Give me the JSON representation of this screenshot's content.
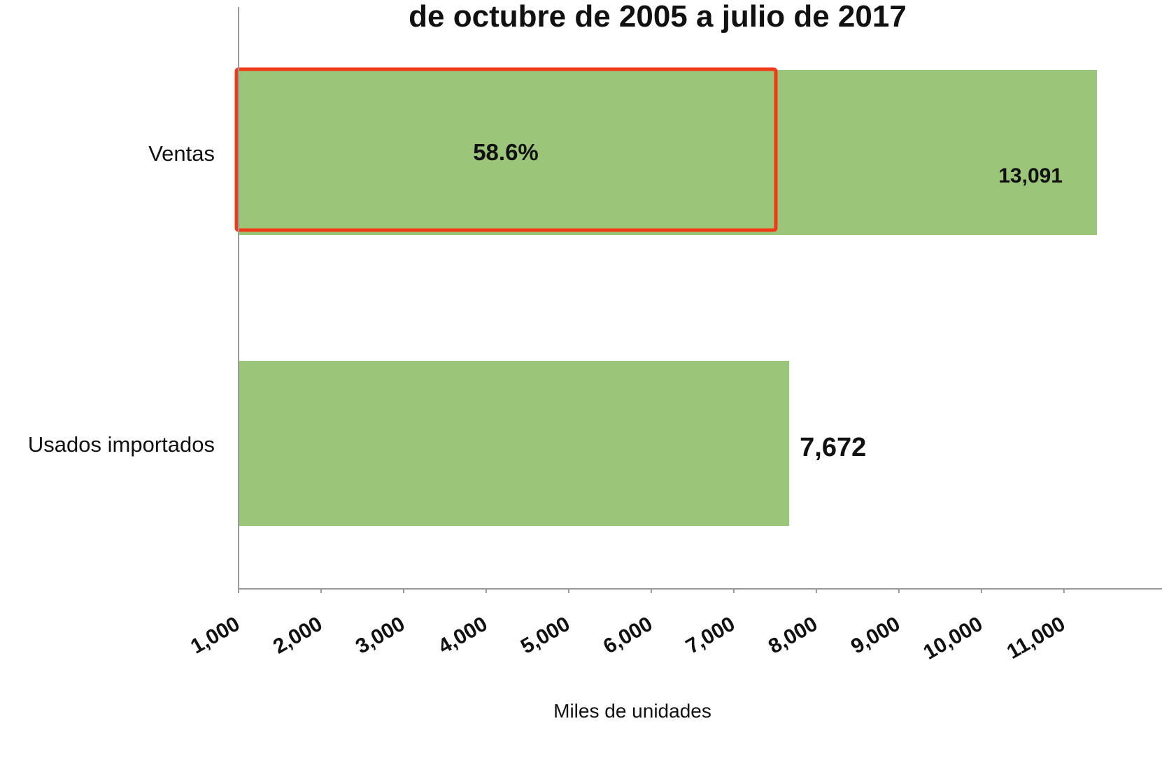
{
  "chart_data": {
    "type": "barh",
    "title": "de octubre de 2005 a julio de 2017",
    "categories": [
      "Ventas",
      "Usados importados"
    ],
    "values": [
      13091,
      7672
    ],
    "value_labels": [
      "13,091",
      "7,672"
    ],
    "color": "#9bc579",
    "xlabel": "Miles de unidades",
    "xlim": [
      1000,
      11400
    ],
    "xticks": [
      {
        "value": 1000,
        "label": "1,000"
      },
      {
        "value": 2000,
        "label": "2,000"
      },
      {
        "value": 3000,
        "label": "3,000"
      },
      {
        "value": 4000,
        "label": "4,000"
      },
      {
        "value": 5000,
        "label": "5,000"
      },
      {
        "value": 6000,
        "label": "6,000"
      },
      {
        "value": 7000,
        "label": "7,000"
      },
      {
        "value": 8000,
        "label": "8,000"
      },
      {
        "value": 9000,
        "label": "9,000"
      },
      {
        "value": 10000,
        "label": "10,000"
      },
      {
        "value": 11000,
        "label": "11,000"
      }
    ],
    "annotation": "58.6%",
    "annotation_color": "#f03a17"
  }
}
